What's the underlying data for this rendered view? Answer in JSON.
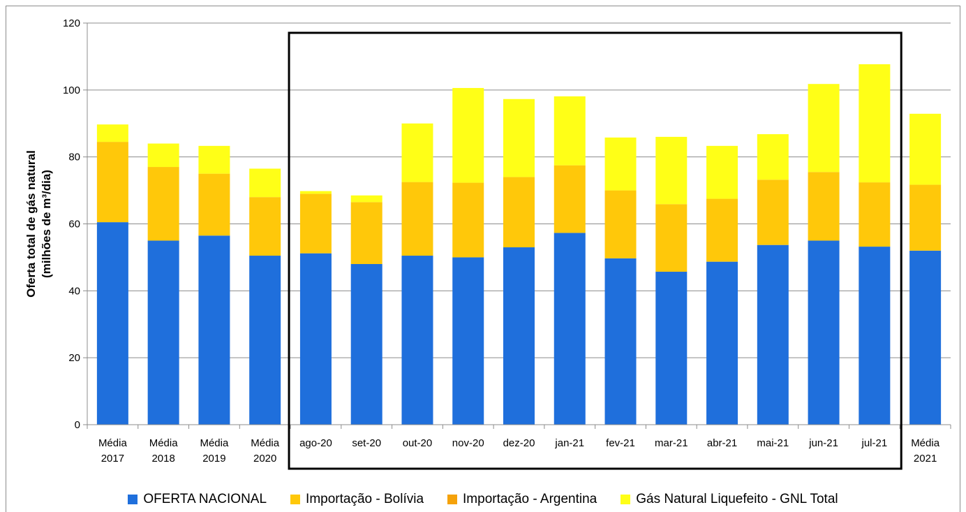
{
  "chart_data": {
    "type": "bar",
    "stacked": true,
    "categories": [
      [
        "Média",
        "2017"
      ],
      [
        "Média",
        "2018"
      ],
      [
        "Média",
        "2019"
      ],
      [
        "Média",
        "2020"
      ],
      [
        "ago-20"
      ],
      [
        "set-20"
      ],
      [
        "out-20"
      ],
      [
        "nov-20"
      ],
      [
        "dez-20"
      ],
      [
        "jan-21"
      ],
      [
        "fev-21"
      ],
      [
        "mar-21"
      ],
      [
        "abr-21"
      ],
      [
        "mai-21"
      ],
      [
        "jun-21"
      ],
      [
        "jul-21"
      ],
      [
        "Média",
        "2021"
      ]
    ],
    "series": [
      {
        "name": "OFERTA NACIONAL",
        "color": "#1f6fdc",
        "values": [
          60.5,
          55.0,
          56.5,
          50.5,
          51.2,
          48.0,
          50.5,
          50.0,
          53.0,
          57.3,
          49.7,
          45.7,
          48.7,
          53.7,
          55.0,
          53.2,
          52.0
        ]
      },
      {
        "name": "Importação - Bolívia",
        "color": "#ffc80a",
        "values": [
          24.0,
          22.0,
          18.5,
          17.5,
          17.8,
          18.5,
          22.0,
          22.3,
          21.0,
          20.2,
          20.3,
          20.2,
          18.8,
          19.5,
          20.5,
          19.2,
          19.7
        ]
      },
      {
        "name": "Importação - Argentina",
        "color": "#f5a20a",
        "values": [
          0,
          0,
          0,
          0,
          0,
          0,
          0,
          0,
          0,
          0,
          0,
          0,
          0,
          0,
          0,
          0,
          0
        ]
      },
      {
        "name": "Gás Natural Liquefeito - GNL Total",
        "color": "#ffff17",
        "values": [
          5.2,
          7.0,
          8.3,
          8.5,
          0.8,
          2.0,
          17.5,
          28.3,
          23.3,
          20.6,
          15.8,
          20.1,
          15.8,
          13.6,
          26.3,
          35.3,
          21.2
        ]
      }
    ],
    "ylabel": [
      "Oferta total  de gás natural",
      "(milhões de m³/dia)"
    ],
    "ylim": [
      0,
      120
    ],
    "yticks": [
      0,
      20,
      40,
      60,
      80,
      100,
      120
    ],
    "grid": true,
    "legend_position": "bottom",
    "highlight_box": {
      "from_category": "ago-20",
      "to_category": "jul-21"
    }
  }
}
